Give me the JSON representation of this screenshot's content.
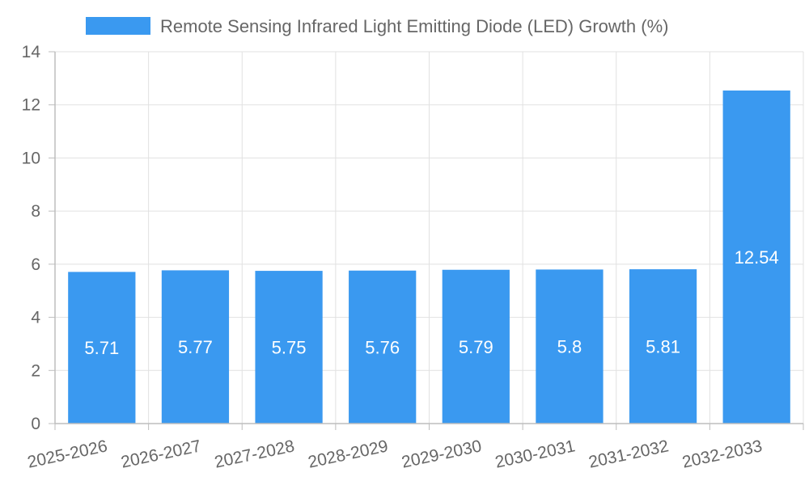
{
  "chart_data": {
    "type": "bar",
    "categories": [
      "2025-2026",
      "2026-2027",
      "2027-2028",
      "2028-2029",
      "2029-2030",
      "2030-2031",
      "2031-2032",
      "2032-2033"
    ],
    "series": [
      {
        "name": "Remote Sensing Infrared Light Emitting Diode (LED) Growth (%)",
        "values": [
          5.71,
          5.77,
          5.75,
          5.76,
          5.79,
          5.8,
          5.81,
          12.54
        ],
        "color": "#3a99f0"
      }
    ],
    "data_labels": [
      "5.71",
      "5.77",
      "5.75",
      "5.76",
      "5.79",
      "5.8",
      "5.81",
      "12.54"
    ],
    "y_ticks": [
      "0",
      "2",
      "4",
      "6",
      "8",
      "10",
      "12",
      "14"
    ],
    "ylim": [
      0,
      14
    ],
    "grid": true,
    "legend_position": "top-center"
  }
}
